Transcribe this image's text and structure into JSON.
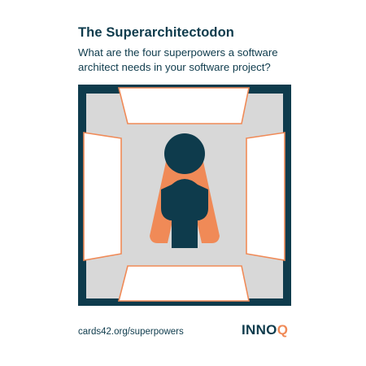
{
  "card": {
    "title": "The Superarchitectodon",
    "question": "What are the four superpowers a software architect needs in your software project?"
  },
  "footer": {
    "link_text": "cards42.org/superpowers",
    "logo_main": "INNO",
    "logo_accent": "Q"
  },
  "colors": {
    "navy": "#0e3b4c",
    "orange": "#f08a57",
    "gray": "#d8d8d8",
    "white": "#ffffff"
  },
  "icons": {
    "figure": "architect-figure-icon",
    "cape": "cape-icon"
  }
}
